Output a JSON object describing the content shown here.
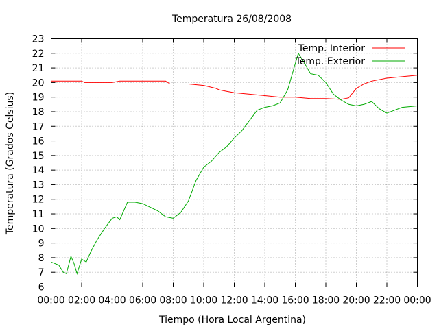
{
  "chart_data": {
    "type": "line",
    "title": "Temperatura 26/08/2008",
    "xlabel": "Tiempo (Hora Local Argentina)",
    "ylabel": "Temperatura (Grados Celsius)",
    "xlim": [
      0,
      24
    ],
    "ylim": [
      6,
      23
    ],
    "x_ticks": [
      "00:00",
      "02:00",
      "04:00",
      "06:00",
      "08:00",
      "10:00",
      "12:00",
      "14:00",
      "16:00",
      "18:00",
      "20:00",
      "22:00",
      "00:00"
    ],
    "y_ticks": [
      "6",
      "7",
      "8",
      "9",
      "10",
      "11",
      "12",
      "13",
      "14",
      "15",
      "16",
      "17",
      "18",
      "19",
      "20",
      "21",
      "22",
      "23"
    ],
    "grid": true,
    "legend_position": "top-right",
    "series": [
      {
        "name": "Temp. Interior",
        "color": "#ff0000",
        "points": [
          [
            0,
            20.1
          ],
          [
            2,
            20.1
          ],
          [
            2.2,
            20.0
          ],
          [
            4,
            20.0
          ],
          [
            4.5,
            20.1
          ],
          [
            6,
            20.1
          ],
          [
            7.5,
            20.1
          ],
          [
            7.8,
            19.9
          ],
          [
            9,
            19.9
          ],
          [
            10,
            19.8
          ],
          [
            10.8,
            19.6
          ],
          [
            11,
            19.5
          ],
          [
            11.5,
            19.4
          ],
          [
            12,
            19.3
          ],
          [
            13,
            19.2
          ],
          [
            14,
            19.1
          ],
          [
            15,
            19.0
          ],
          [
            16,
            19.0
          ],
          [
            17,
            18.9
          ],
          [
            18,
            18.9
          ],
          [
            19,
            18.85
          ],
          [
            19.5,
            18.95
          ],
          [
            20,
            19.6
          ],
          [
            20.5,
            19.9
          ],
          [
            21,
            20.1
          ],
          [
            22,
            20.3
          ],
          [
            23,
            20.4
          ],
          [
            24,
            20.5
          ]
        ]
      },
      {
        "name": "Temp. Exterior",
        "color": "#00aa00",
        "points": [
          [
            0,
            7.7
          ],
          [
            0.5,
            7.5
          ],
          [
            0.8,
            7.0
          ],
          [
            1,
            6.9
          ],
          [
            1.3,
            8.1
          ],
          [
            1.5,
            7.6
          ],
          [
            1.7,
            6.9
          ],
          [
            2,
            7.9
          ],
          [
            2.3,
            7.7
          ],
          [
            2.6,
            8.4
          ],
          [
            3,
            9.2
          ],
          [
            3.5,
            10.0
          ],
          [
            4,
            10.7
          ],
          [
            4.3,
            10.8
          ],
          [
            4.5,
            10.6
          ],
          [
            5,
            11.8
          ],
          [
            5.5,
            11.8
          ],
          [
            6,
            11.7
          ],
          [
            7,
            11.2
          ],
          [
            7.5,
            10.8
          ],
          [
            8,
            10.7
          ],
          [
            8.5,
            11.1
          ],
          [
            9,
            11.9
          ],
          [
            9.5,
            13.3
          ],
          [
            10,
            14.2
          ],
          [
            10.5,
            14.6
          ],
          [
            11,
            15.2
          ],
          [
            11.5,
            15.6
          ],
          [
            12,
            16.2
          ],
          [
            12.5,
            16.7
          ],
          [
            13,
            17.4
          ],
          [
            13.5,
            18.1
          ],
          [
            14,
            18.3
          ],
          [
            14.5,
            18.4
          ],
          [
            15,
            18.6
          ],
          [
            15.5,
            19.5
          ],
          [
            16,
            21.3
          ],
          [
            16.2,
            22.0
          ],
          [
            16.5,
            21.5
          ],
          [
            17,
            20.6
          ],
          [
            17.5,
            20.5
          ],
          [
            18,
            20.0
          ],
          [
            18.5,
            19.2
          ],
          [
            19,
            18.8
          ],
          [
            19.5,
            18.5
          ],
          [
            20,
            18.4
          ],
          [
            20.5,
            18.5
          ],
          [
            21,
            18.7
          ],
          [
            21.5,
            18.2
          ],
          [
            22,
            17.9
          ],
          [
            22.5,
            18.1
          ],
          [
            23,
            18.3
          ],
          [
            24,
            18.4
          ]
        ]
      }
    ]
  }
}
